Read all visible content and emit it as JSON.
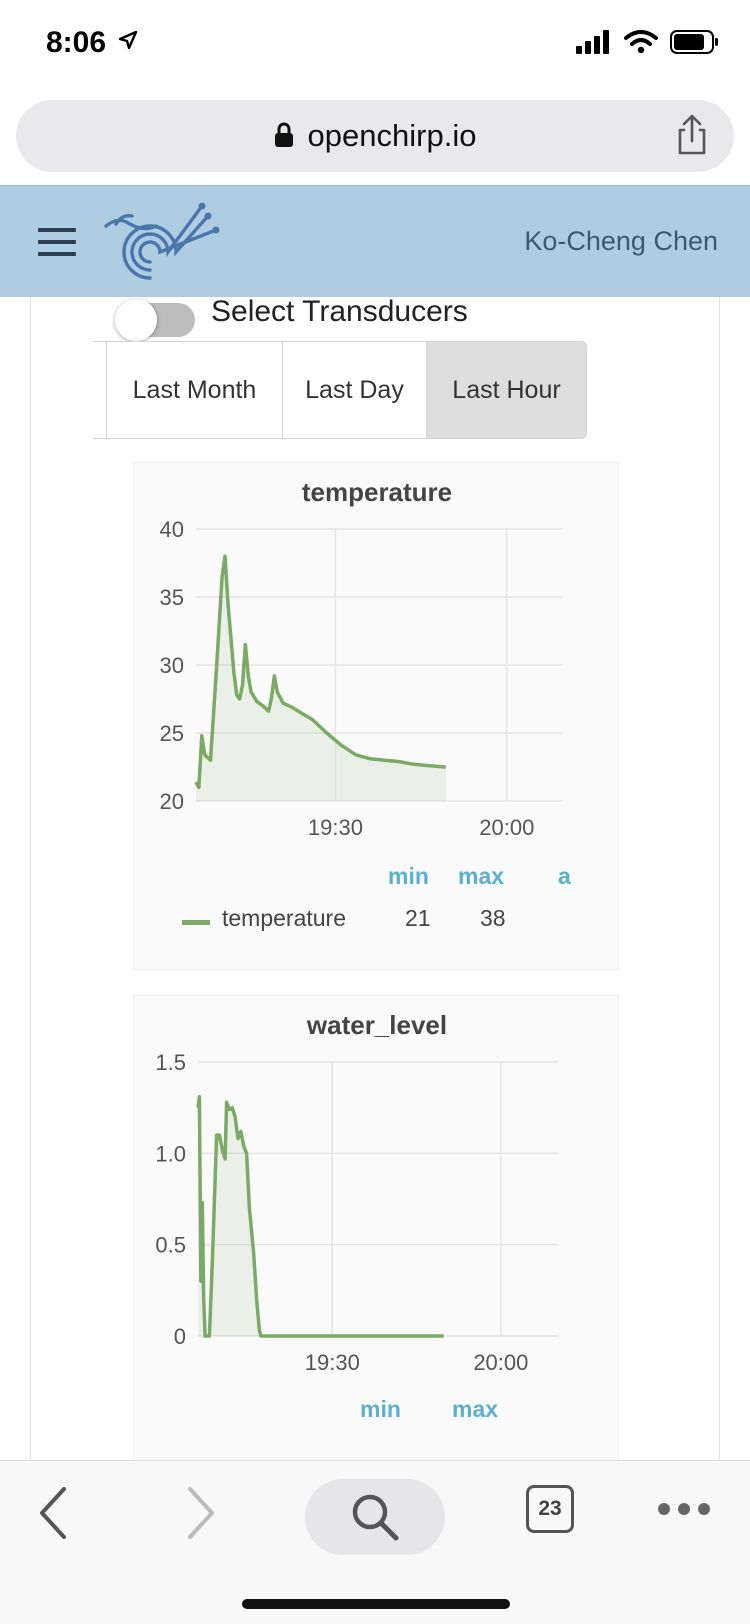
{
  "status_bar": {
    "time": "8:06"
  },
  "browser": {
    "url": "openchirp.io",
    "tab_count": "23"
  },
  "header": {
    "user_name": "Ko-Cheng Chen"
  },
  "controls": {
    "toggle_label": "Select Transducers",
    "toggle_on": false,
    "ranges": [
      {
        "label": "Last Month"
      },
      {
        "label": "Last Day"
      },
      {
        "label": "Last Hour",
        "selected": true
      }
    ]
  },
  "legend_headers": {
    "min": "min",
    "max": "max",
    "avg_partial": "a"
  },
  "chart_data": [
    {
      "type": "area",
      "title": "temperature",
      "x_ticks": [
        "19:30",
        "20:00"
      ],
      "y_ticks": [
        "20",
        "25",
        "30",
        "35",
        "40"
      ],
      "ylim": [
        20,
        40
      ],
      "grid": true,
      "series": [
        {
          "name": "temperature",
          "color": "#7aaa64",
          "min": "21",
          "max": "38",
          "points": [
            [
              0,
              21.4
            ],
            [
              1,
              21.0
            ],
            [
              2,
              24.8
            ],
            [
              3,
              23.4
            ],
            [
              4,
              23.2
            ],
            [
              5,
              23.0
            ],
            [
              7,
              29.5
            ],
            [
              9,
              36.5
            ],
            [
              10,
              38.0
            ],
            [
              11,
              34.5
            ],
            [
              13,
              29.5
            ],
            [
              14,
              27.8
            ],
            [
              15,
              27.5
            ],
            [
              16,
              28.5
            ],
            [
              17,
              31.5
            ],
            [
              18,
              29.2
            ],
            [
              19,
              28.0
            ],
            [
              21,
              27.3
            ],
            [
              23,
              27.0
            ],
            [
              24,
              26.8
            ],
            [
              25,
              26.6
            ],
            [
              26,
              27.6
            ],
            [
              27,
              29.2
            ],
            [
              28,
              28.0
            ],
            [
              30,
              27.2
            ],
            [
              33,
              26.9
            ],
            [
              36,
              26.5
            ],
            [
              40,
              26.0
            ],
            [
              45,
              25.0
            ],
            [
              50,
              24.1
            ],
            [
              55,
              23.4
            ],
            [
              60,
              23.1
            ],
            [
              65,
              23.0
            ],
            [
              70,
              22.9
            ],
            [
              75,
              22.7
            ],
            [
              80,
              22.6
            ],
            [
              86,
              22.5
            ]
          ]
        }
      ]
    },
    {
      "type": "area",
      "title": "water_level",
      "x_ticks": [
        "19:30",
        "20:00"
      ],
      "y_ticks": [
        "0",
        "0.5",
        "1.0",
        "1.5"
      ],
      "ylim": [
        0,
        1.5
      ],
      "grid": true,
      "series": [
        {
          "name": "water_level",
          "color": "#7aaa64",
          "min": "0",
          "max": "1.31",
          "points": [
            [
              0,
              1.25
            ],
            [
              0.5,
              1.31
            ],
            [
              1,
              0.3
            ],
            [
              1.5,
              0.73
            ],
            [
              2,
              0.2
            ],
            [
              2.5,
              0
            ],
            [
              4,
              0
            ],
            [
              5,
              0.4
            ],
            [
              6.5,
              1.1
            ],
            [
              7.5,
              1.1
            ],
            [
              8.5,
              1.02
            ],
            [
              9.5,
              0.97
            ],
            [
              10,
              1.28
            ],
            [
              11,
              1.24
            ],
            [
              12,
              1.25
            ],
            [
              13,
              1.2
            ],
            [
              14,
              1.08
            ],
            [
              15,
              1.12
            ],
            [
              16,
              1.04
            ],
            [
              17,
              1.0
            ],
            [
              18,
              0.7
            ],
            [
              19.5,
              0.45
            ],
            [
              20.5,
              0.2
            ],
            [
              21.5,
              0.03
            ],
            [
              22,
              0
            ],
            [
              30,
              0
            ],
            [
              50,
              0
            ],
            [
              70,
              0
            ],
            [
              86,
              0
            ]
          ]
        }
      ]
    }
  ]
}
